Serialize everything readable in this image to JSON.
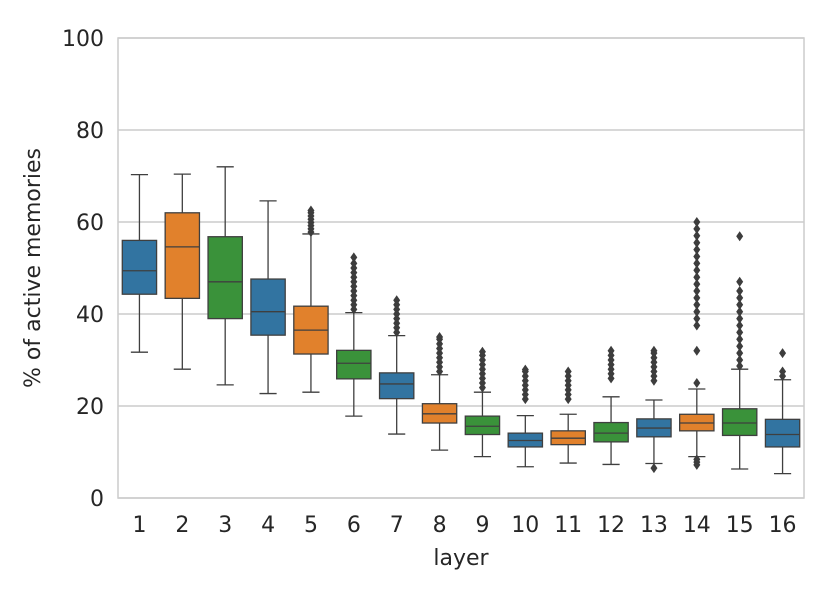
{
  "chart_data": {
    "type": "box",
    "title": "",
    "xlabel": "layer",
    "ylabel": "% of active memories",
    "ylim": [
      0,
      100
    ],
    "yticks": [
      0,
      20,
      40,
      60,
      80,
      100
    ],
    "grid": "horizontal",
    "legend": "none",
    "palette": [
      "#3274a1",
      "#e1812c",
      "#3a923a"
    ],
    "categories": [
      "1",
      "2",
      "3",
      "4",
      "5",
      "6",
      "7",
      "8",
      "9",
      "10",
      "11",
      "12",
      "13",
      "14",
      "15",
      "16"
    ],
    "boxes": [
      {
        "layer": "1",
        "whisker_low": 31.7,
        "q1": 44.3,
        "median": 49.4,
        "q3": 56.0,
        "whisker_high": 70.3,
        "outliers": []
      },
      {
        "layer": "2",
        "whisker_low": 28.0,
        "q1": 43.4,
        "median": 54.6,
        "q3": 62.0,
        "whisker_high": 70.4,
        "outliers": []
      },
      {
        "layer": "3",
        "whisker_low": 24.6,
        "q1": 39.0,
        "median": 47.0,
        "q3": 56.8,
        "whisker_high": 72.0,
        "outliers": []
      },
      {
        "layer": "4",
        "whisker_low": 22.7,
        "q1": 35.4,
        "median": 40.5,
        "q3": 47.6,
        "whisker_high": 64.6,
        "outliers": []
      },
      {
        "layer": "5",
        "whisker_low": 23.0,
        "q1": 31.3,
        "median": 36.5,
        "q3": 41.7,
        "whisker_high": 57.4,
        "outliers": [
          57.8,
          58.5,
          59.2,
          59.9,
          60.6,
          61.3,
          62.0,
          62.5
        ]
      },
      {
        "layer": "6",
        "whisker_low": 17.8,
        "q1": 25.9,
        "median": 29.3,
        "q3": 32.1,
        "whisker_high": 40.3,
        "outliers": [
          41.0,
          42.0,
          43.0,
          44.0,
          45.0,
          46.0,
          47.0,
          48.0,
          49.0,
          50.0,
          51.0,
          52.3
        ]
      },
      {
        "layer": "7",
        "whisker_low": 13.9,
        "q1": 21.6,
        "median": 24.8,
        "q3": 27.2,
        "whisker_high": 35.3,
        "outliers": [
          36.0,
          37.0,
          38.0,
          39.0,
          40.0,
          41.0,
          42.0,
          43.0
        ]
      },
      {
        "layer": "8",
        "whisker_low": 10.4,
        "q1": 16.3,
        "median": 18.3,
        "q3": 20.5,
        "whisker_high": 26.8,
        "outliers": [
          27.5,
          28.5,
          29.5,
          30.5,
          31.5,
          32.5,
          33.5,
          34.5,
          35.0
        ]
      },
      {
        "layer": "9",
        "whisker_low": 9.0,
        "q1": 13.8,
        "median": 15.6,
        "q3": 17.8,
        "whisker_high": 23.0,
        "outliers": [
          24.0,
          25.0,
          26.0,
          27.0,
          28.0,
          29.0,
          30.0,
          31.0,
          31.8
        ]
      },
      {
        "layer": "10",
        "whisker_low": 6.8,
        "q1": 11.1,
        "median": 12.5,
        "q3": 14.1,
        "whisker_high": 17.9,
        "outliers": [
          21.5,
          22.5,
          23.5,
          24.5,
          25.5,
          26.5,
          27.5,
          27.9
        ]
      },
      {
        "layer": "11",
        "whisker_low": 7.6,
        "q1": 11.6,
        "median": 13.0,
        "q3": 14.6,
        "whisker_high": 18.2,
        "outliers": [
          21.5,
          22.5,
          23.5,
          24.5,
          25.5,
          26.5,
          27.5
        ]
      },
      {
        "layer": "12",
        "whisker_low": 7.3,
        "q1": 12.2,
        "median": 14.1,
        "q3": 16.4,
        "whisker_high": 22.0,
        "outliers": [
          26.0,
          27.0,
          28.0,
          29.0,
          30.0,
          31.0,
          32.0
        ]
      },
      {
        "layer": "13",
        "whisker_low": 7.5,
        "q1": 13.3,
        "median": 15.2,
        "q3": 17.2,
        "whisker_high": 21.3,
        "outliers": [
          6.5,
          25.5,
          26.5,
          27.5,
          28.5,
          29.5,
          30.5,
          31.5,
          32.0
        ]
      },
      {
        "layer": "14",
        "whisker_low": 9.0,
        "q1": 14.6,
        "median": 16.3,
        "q3": 18.2,
        "whisker_high": 23.7,
        "outliers": [
          7.2,
          7.8,
          8.4,
          25.0,
          32.0,
          37.5,
          39.0,
          40.5,
          42.0,
          43.5,
          45.0,
          46.5,
          48.0,
          49.5,
          51.0,
          52.5,
          54.0,
          55.5,
          57.0,
          58.5,
          60.0
        ]
      },
      {
        "layer": "15",
        "whisker_low": 6.3,
        "q1": 13.6,
        "median": 16.3,
        "q3": 19.4,
        "whisker_high": 28.0,
        "outliers": [
          28.7,
          30.0,
          31.5,
          33.0,
          34.5,
          36.0,
          37.5,
          39.0,
          40.5,
          42.0,
          43.5,
          45.0,
          47.0,
          56.9
        ]
      },
      {
        "layer": "16",
        "whisker_low": 5.3,
        "q1": 11.1,
        "median": 13.8,
        "q3": 17.1,
        "whisker_high": 25.7,
        "outliers": [
          26.5,
          27.5,
          31.5
        ]
      }
    ]
  }
}
